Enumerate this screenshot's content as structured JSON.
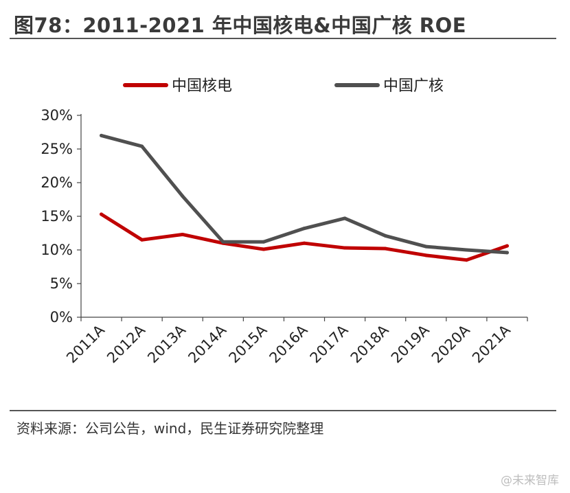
{
  "header": {
    "title": "图78：2011-2021 年中国核电&中国广核 ROE"
  },
  "footer": {
    "source": "资料来源：公司公告，wind，民生证券研究院整理",
    "watermark": "@未来智库"
  },
  "chart_data": {
    "type": "line",
    "title": "",
    "xlabel": "",
    "ylabel": "",
    "categories": [
      "2011A",
      "2012A",
      "2013A",
      "2014A",
      "2015A",
      "2016A",
      "2017A",
      "2018A",
      "2019A",
      "2020A",
      "2021A"
    ],
    "ylim": [
      0,
      30
    ],
    "y_ticks": [
      "0%",
      "5%",
      "10%",
      "15%",
      "20%",
      "25%",
      "30%"
    ],
    "legend_position": "top",
    "grid": false,
    "series": [
      {
        "name": "中国核电",
        "color": "#c00000",
        "values": [
          15.3,
          11.5,
          12.3,
          11.0,
          10.1,
          11.0,
          10.3,
          10.2,
          9.2,
          8.5,
          10.6
        ]
      },
      {
        "name": "中国广核",
        "color": "#505050",
        "values": [
          27.0,
          25.4,
          18.0,
          11.2,
          11.2,
          13.2,
          14.7,
          12.1,
          10.5,
          10.0,
          9.6
        ]
      }
    ]
  }
}
